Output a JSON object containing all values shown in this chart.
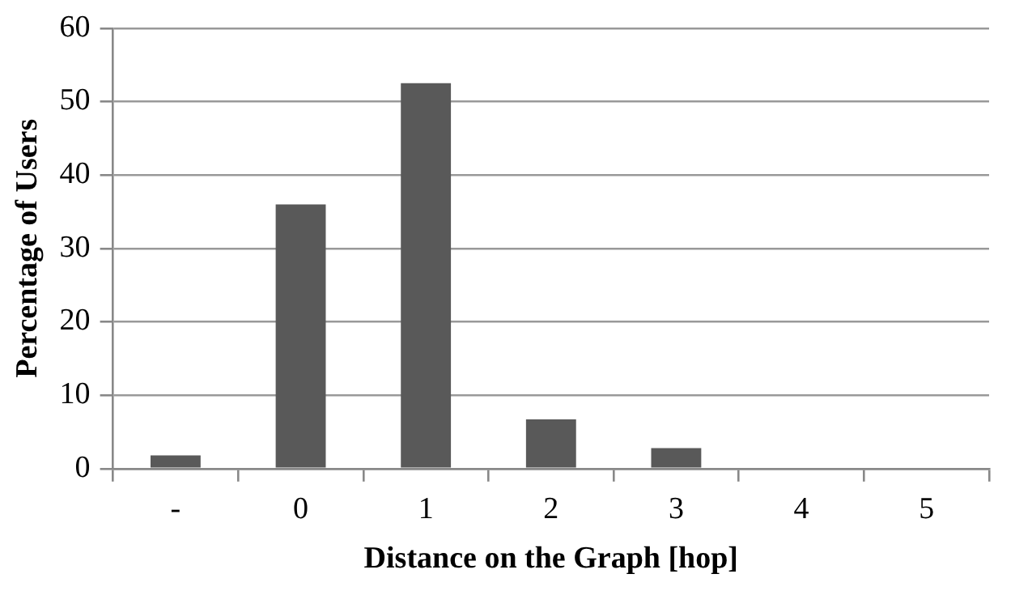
{
  "chart_data": {
    "type": "bar",
    "xlabel": "Distance on the Graph [hop]",
    "ylabel": "Percentage of Users",
    "categories": [
      "-",
      "0",
      "1",
      "2",
      "3",
      "4",
      "5"
    ],
    "values": [
      1.8,
      36,
      52.5,
      6.7,
      2.8,
      0,
      0
    ],
    "color": "#595959",
    "ylim": [
      0,
      60
    ],
    "yticks": [
      0,
      10,
      20,
      30,
      40,
      50,
      60
    ],
    "grid": "y",
    "legend": false
  }
}
